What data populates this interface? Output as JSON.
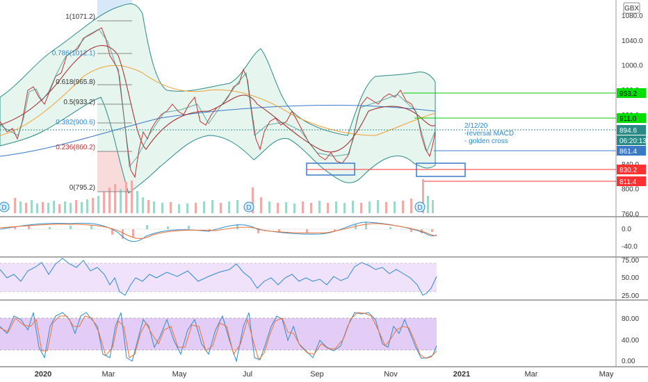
{
  "currency": "GBX",
  "chart_data": [
    {
      "type": "candlestick",
      "panel": "price",
      "ylim": [
        750,
        1100
      ],
      "y_ticks": [
        "1080.0",
        "1040.0",
        "1000.0",
        "960.0",
        "920.0",
        "880.0",
        "840.0",
        "800.0",
        "760.0"
      ],
      "x_ticks": [
        "2020",
        "Mar",
        "May",
        "Jul",
        "Sep",
        "Nov",
        "2021",
        "Mar",
        "May"
      ],
      "close_points": [
        {
          "x": "2020-01-01",
          "y": 870
        },
        {
          "x": "2020-01-10",
          "y": 895
        },
        {
          "x": "2020-01-20",
          "y": 925
        },
        {
          "x": "2020-01-30",
          "y": 915
        },
        {
          "x": "2020-02-08",
          "y": 960
        },
        {
          "x": "2020-02-15",
          "y": 1010
        },
        {
          "x": "2020-02-20",
          "y": 1050
        },
        {
          "x": "2020-02-24",
          "y": 1065
        },
        {
          "x": "2020-02-28",
          "y": 1020
        },
        {
          "x": "2020-03-05",
          "y": 985
        },
        {
          "x": "2020-03-10",
          "y": 935
        },
        {
          "x": "2020-03-16",
          "y": 860
        },
        {
          "x": "2020-03-20",
          "y": 800
        },
        {
          "x": "2020-03-25",
          "y": 840
        },
        {
          "x": "2020-04-01",
          "y": 865
        },
        {
          "x": "2020-04-10",
          "y": 880
        },
        {
          "x": "2020-04-20",
          "y": 860
        },
        {
          "x": "2020-05-01",
          "y": 905
        },
        {
          "x": "2020-05-10",
          "y": 915
        },
        {
          "x": "2020-05-20",
          "y": 905
        },
        {
          "x": "2020-06-01",
          "y": 920
        },
        {
          "x": "2020-06-10",
          "y": 930
        },
        {
          "x": "2020-06-20",
          "y": 955
        },
        {
          "x": "2020-06-30",
          "y": 975
        },
        {
          "x": "2020-07-05",
          "y": 965
        },
        {
          "x": "2020-07-10",
          "y": 905
        },
        {
          "x": "2020-07-18",
          "y": 885
        },
        {
          "x": "2020-07-25",
          "y": 900
        },
        {
          "x": "2020-08-01",
          "y": 895
        },
        {
          "x": "2020-08-10",
          "y": 880
        },
        {
          "x": "2020-08-20",
          "y": 860
        },
        {
          "x": "2020-08-30",
          "y": 850
        },
        {
          "x": "2020-09-07",
          "y": 855
        },
        {
          "x": "2020-09-15",
          "y": 848
        },
        {
          "x": "2020-09-22",
          "y": 848
        },
        {
          "x": "2020-09-30",
          "y": 870
        },
        {
          "x": "2020-10-05",
          "y": 905
        },
        {
          "x": "2020-10-15",
          "y": 930
        },
        {
          "x": "2020-10-25",
          "y": 940
        },
        {
          "x": "2020-11-01",
          "y": 945
        },
        {
          "x": "2020-11-10",
          "y": 945
        },
        {
          "x": "2020-11-18",
          "y": 945
        },
        {
          "x": "2020-11-25",
          "y": 925
        },
        {
          "x": "2020-12-01",
          "y": 880
        },
        {
          "x": "2020-12-05",
          "y": 860
        },
        {
          "x": "2020-12-10",
          "y": 870
        },
        {
          "x": "2020-12-14",
          "y": 894.6
        }
      ],
      "fib_levels": [
        {
          "label": "1(1071.2)",
          "value": 1071.2
        },
        {
          "label": "0.786(1012.1)",
          "value": 1012.1
        },
        {
          "label": "0.618(965.8)",
          "value": 965.8
        },
        {
          "label": "0.5(933.2)",
          "value": 933.2
        },
        {
          "label": "0.382(900.6)",
          "value": 900.6
        },
        {
          "label": "0.236(860.2)",
          "value": 860.2
        },
        {
          "label": "0(795.2)",
          "value": 795.2
        }
      ],
      "price_tags": [
        {
          "label": "953.2",
          "value": 953.2,
          "color": "#00e000",
          "text_color": "#000000"
        },
        {
          "label": "911.0",
          "value": 911.0,
          "color": "#00e000",
          "text_color": "#000000"
        },
        {
          "label": "894.6",
          "value": 894.6,
          "color": "#2a8a86",
          "text_color": "#ffffff"
        },
        {
          "label": "06:20:13",
          "value": 878,
          "color": "#2a8a86",
          "text_color": "#ffffff"
        },
        {
          "label": "861.4",
          "value": 861.4,
          "color": "#3a78c8",
          "text_color": "#ffffff"
        },
        {
          "label": "830.2",
          "value": 830.2,
          "color": "#ff3030",
          "text_color": "#ffffff"
        },
        {
          "label": "811.4",
          "value": 811.4,
          "color": "#ff3030",
          "text_color": "#ffffff"
        }
      ],
      "annotation_lines": [
        "2/12/20",
        "-reversal MACD",
        "- golden cross"
      ],
      "dividend_markers": [
        "D",
        "D",
        "D"
      ]
    },
    {
      "type": "line",
      "panel": "macd",
      "y_ticks": [
        "0.0",
        "-40.0"
      ]
    },
    {
      "type": "line",
      "panel": "rsi",
      "y_ticks": [
        "75.00",
        "50.00",
        "25.00"
      ],
      "band": [
        30,
        70
      ]
    },
    {
      "type": "line",
      "panel": "stochastic",
      "y_ticks": [
        "80.00",
        "40.00",
        "0.00"
      ],
      "band": [
        20,
        80
      ]
    }
  ]
}
